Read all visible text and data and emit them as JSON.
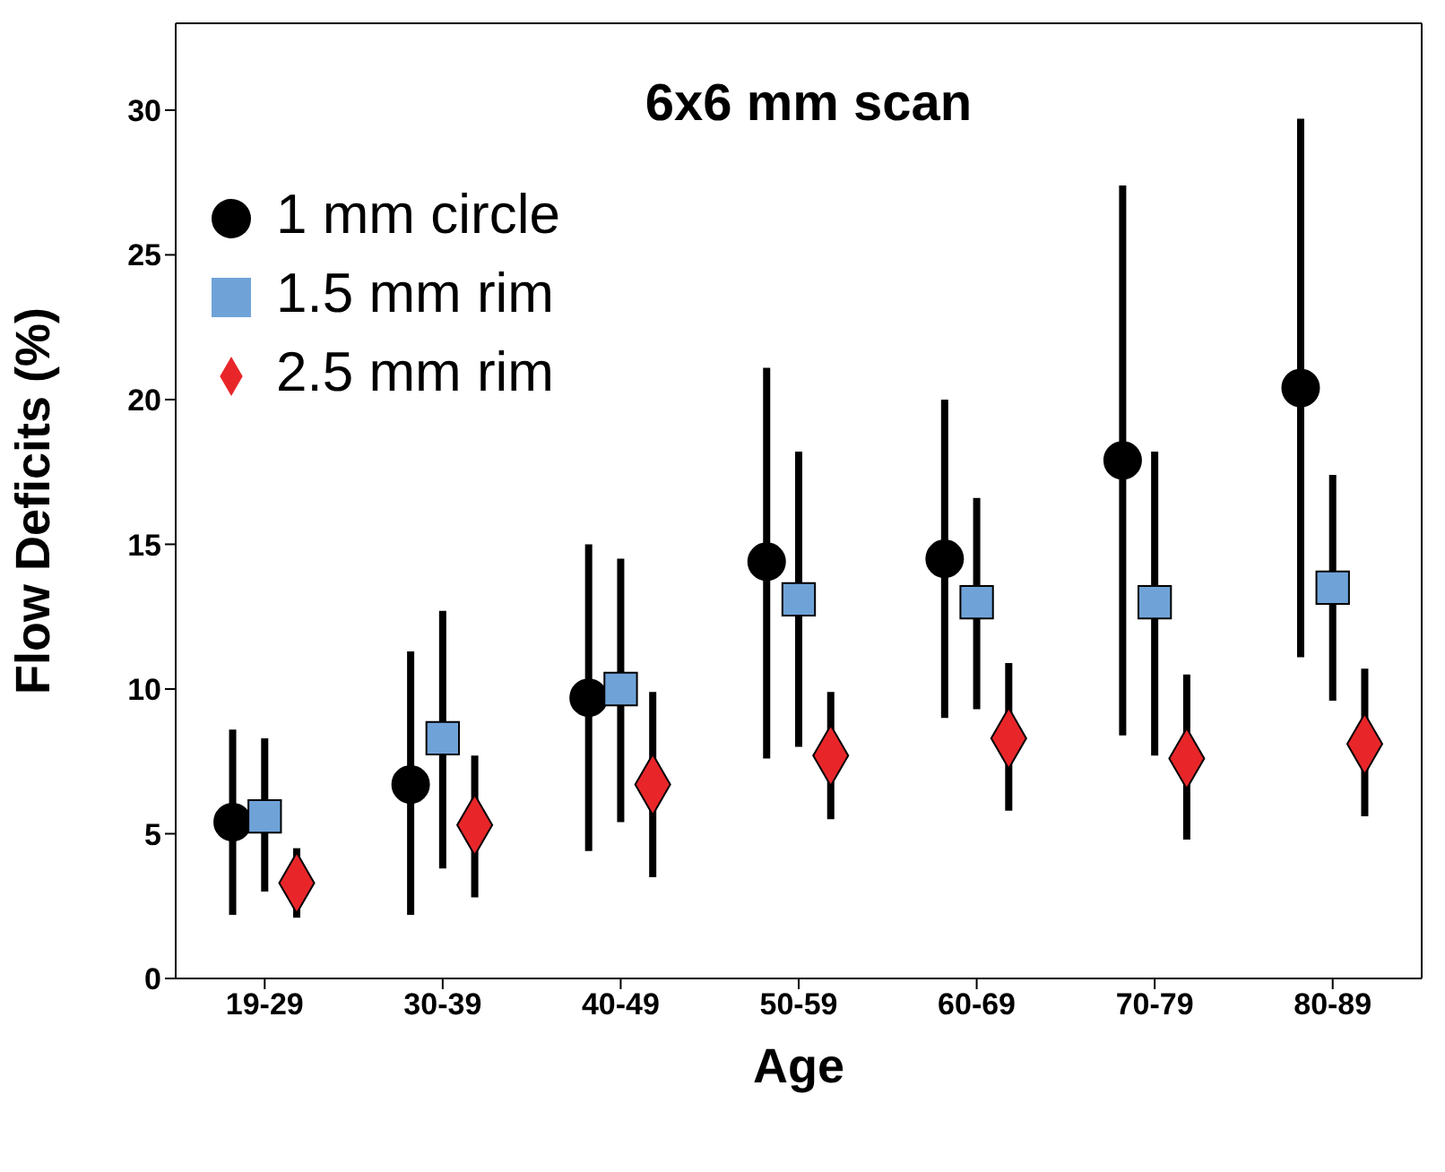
{
  "chart_data": {
    "type": "scatter",
    "title": "6x6 mm scan",
    "xlabel": "Age",
    "ylabel": "Flow Deficits (%)",
    "categories": [
      "19-29",
      "30-39",
      "40-49",
      "50-59",
      "60-69",
      "70-79",
      "80-89"
    ],
    "series": [
      {
        "name": "1 mm circle",
        "color": "#000000",
        "marker": "circle",
        "values": [
          5.4,
          6.7,
          9.7,
          14.4,
          14.5,
          17.9,
          20.4
        ],
        "errors": [
          [
            2.2,
            8.6
          ],
          [
            2.2,
            11.3
          ],
          [
            4.4,
            15.0
          ],
          [
            7.6,
            21.1
          ],
          [
            9.0,
            20.0
          ],
          [
            8.4,
            27.4
          ],
          [
            11.1,
            29.7
          ]
        ]
      },
      {
        "name": "1.5 mm rim",
        "color": "#6fa3d8",
        "marker": "square",
        "values": [
          5.6,
          8.3,
          10.0,
          13.1,
          13.0,
          13.0,
          13.5
        ],
        "errors": [
          [
            3.0,
            8.3
          ],
          [
            3.8,
            12.7
          ],
          [
            5.4,
            14.5
          ],
          [
            8.0,
            18.2
          ],
          [
            9.3,
            16.6
          ],
          [
            7.7,
            18.2
          ],
          [
            9.6,
            17.4
          ]
        ]
      },
      {
        "name": "2.5 mm rim",
        "color": "#e8262a",
        "marker": "diamond",
        "values": [
          3.3,
          5.3,
          6.7,
          7.7,
          8.3,
          7.6,
          8.1
        ],
        "errors": [
          [
            2.1,
            4.5
          ],
          [
            2.8,
            7.7
          ],
          [
            3.5,
            9.9
          ],
          [
            5.5,
            9.9
          ],
          [
            5.8,
            10.9
          ],
          [
            4.8,
            10.5
          ],
          [
            5.6,
            10.7
          ]
        ]
      }
    ],
    "ylim": [
      0,
      33
    ],
    "yticks": [
      0,
      5,
      10,
      15,
      20,
      25,
      30
    ],
    "grid": false,
    "legend": "top left"
  }
}
